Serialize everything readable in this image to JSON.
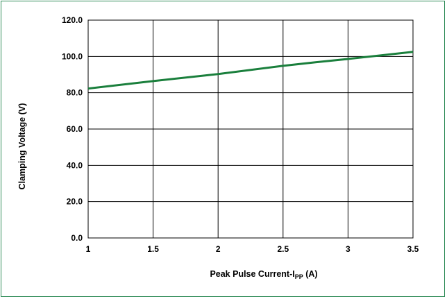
{
  "chart_data": {
    "type": "line",
    "title": "",
    "xlabel": {
      "main": "Peak Pulse Current-I",
      "sub": "PP",
      "suffix": " (A)"
    },
    "ylabel": "Clamping Voltage (V)",
    "xlim": [
      1,
      3.5
    ],
    "ylim": [
      0,
      120
    ],
    "x_ticks": [
      "1",
      "1.5",
      "2",
      "2.5",
      "3",
      "3.5"
    ],
    "y_ticks": [
      "0.0",
      "20.0",
      "40.0",
      "60.0",
      "80.0",
      "100.0",
      "120.0"
    ],
    "grid": {
      "vertical": true,
      "horizontal": true
    },
    "series": [
      {
        "color": "#1a7f3c",
        "x": [
          1.0,
          1.5,
          2.0,
          2.5,
          2.75,
          3.0,
          3.5
        ],
        "y": [
          82.3,
          86.4,
          90.3,
          94.8,
          96.8,
          98.6,
          102.5
        ]
      }
    ]
  }
}
